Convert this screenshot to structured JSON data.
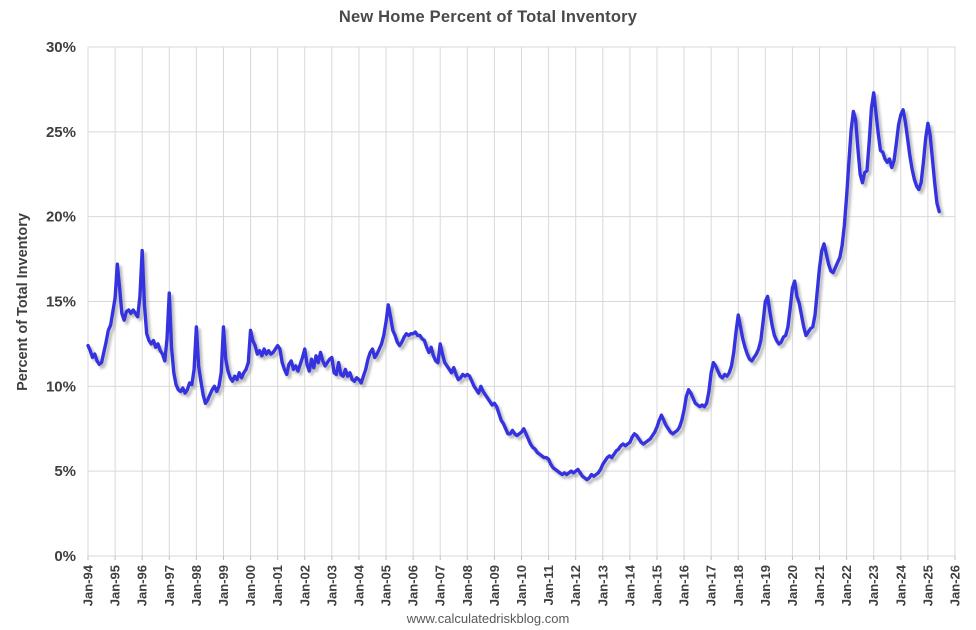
{
  "chart_data": {
    "type": "line",
    "title": "New Home Percent of Total Inventory",
    "ylabel": "Percent of Total Inventory",
    "footer": "www.calculatedriskblog.com",
    "legend": "none",
    "grid": true,
    "ylim": [
      0,
      30
    ],
    "y_ticks": [
      0,
      5,
      10,
      15,
      20,
      25,
      30
    ],
    "y_tick_suffix": "%",
    "x_tick_labels": [
      "Jan-94",
      "Jan-95",
      "Jan-96",
      "Jan-97",
      "Jan-98",
      "Jan-99",
      "Jan-00",
      "Jan-01",
      "Jan-02",
      "Jan-03",
      "Jan-04",
      "Jan-05",
      "Jan-06",
      "Jan-07",
      "Jan-08",
      "Jan-09",
      "Jan-10",
      "Jan-11",
      "Jan-12",
      "Jan-13",
      "Jan-14",
      "Jan-15",
      "Jan-16",
      "Jan-17",
      "Jan-18",
      "Jan-19",
      "Jan-20",
      "Jan-21",
      "Jan-22",
      "Jan-23",
      "Jan-24",
      "Jan-25",
      "Jan-26"
    ],
    "x_start": "Jan-1994",
    "x_end": "Jun-2025",
    "frequency": "monthly",
    "line_color": "#3533e0",
    "series_name": "New home percent of total inventory",
    "series_by_year": {
      "1994": [
        12.4,
        12.1,
        11.7,
        11.9,
        11.5,
        11.3,
        11.4,
        12.0,
        12.6,
        13.3,
        13.6,
        14.4
      ],
      "1995": [
        15.2,
        17.2,
        15.8,
        14.3,
        13.9,
        14.4,
        14.5,
        14.3,
        14.5,
        14.3,
        14.1,
        15.3
      ],
      "1996": [
        18.0,
        14.8,
        13.1,
        12.7,
        12.5,
        12.7,
        12.3,
        12.5,
        12.1,
        11.9,
        11.5,
        12.8
      ],
      "1997": [
        15.5,
        12.3,
        10.8,
        10.1,
        9.8,
        9.7,
        9.9,
        9.6,
        9.8,
        10.2,
        10.1,
        11.0
      ],
      "1998": [
        13.5,
        11.2,
        10.3,
        9.5,
        9.0,
        9.2,
        9.5,
        9.8,
        10.0,
        9.7,
        10.0,
        10.8
      ],
      "1999": [
        13.5,
        11.6,
        10.9,
        10.5,
        10.3,
        10.6,
        10.4,
        10.8,
        10.5,
        10.8,
        11.0,
        11.4
      ],
      "2000": [
        13.3,
        12.7,
        12.4,
        11.9,
        12.1,
        11.8,
        12.2,
        11.9,
        12.1,
        11.9,
        12.0,
        12.2
      ],
      "2001": [
        12.4,
        12.2,
        11.4,
        11.0,
        10.7,
        11.3,
        11.5,
        11.0,
        11.2,
        10.9,
        11.3,
        11.7
      ],
      "2002": [
        12.2,
        11.3,
        10.9,
        11.6,
        11.1,
        11.8,
        11.4,
        12.0,
        11.5,
        11.2,
        11.4,
        11.6
      ],
      "2003": [
        11.7,
        10.8,
        10.7,
        11.4,
        10.7,
        10.6,
        11.0,
        10.6,
        10.8,
        10.4,
        10.3,
        10.5
      ],
      "2004": [
        10.4,
        10.2,
        10.6,
        11.0,
        11.6,
        12.0,
        12.2,
        11.7,
        11.9,
        12.2,
        12.5,
        13.0
      ],
      "2005": [
        13.8,
        14.8,
        14.1,
        13.3,
        13.0,
        12.6,
        12.4,
        12.6,
        12.9,
        13.1,
        13.0,
        13.1
      ],
      "2006": [
        13.1,
        13.2,
        13.0,
        13.0,
        12.8,
        12.7,
        12.3,
        12.0,
        12.3,
        11.8,
        11.5,
        11.4
      ],
      "2007": [
        12.5,
        11.9,
        11.4,
        11.2,
        11.0,
        10.8,
        11.1,
        10.7,
        10.4,
        10.5,
        10.7,
        10.6
      ],
      "2008": [
        10.7,
        10.6,
        10.3,
        10.0,
        9.8,
        9.6,
        10.0,
        9.7,
        9.5,
        9.3,
        9.1,
        8.9
      ],
      "2009": [
        9.0,
        8.8,
        8.4,
        8.0,
        7.8,
        7.5,
        7.2,
        7.2,
        7.4,
        7.2,
        7.1,
        7.2
      ],
      "2010": [
        7.3,
        7.5,
        7.2,
        6.9,
        6.6,
        6.4,
        6.3,
        6.1,
        6.0,
        5.9,
        5.8,
        5.8
      ],
      "2011": [
        5.7,
        5.4,
        5.2,
        5.1,
        5.0,
        4.9,
        4.8,
        4.9,
        4.8,
        4.9,
        5.0,
        4.9
      ],
      "2012": [
        5.0,
        5.1,
        4.9,
        4.7,
        4.6,
        4.5,
        4.6,
        4.8,
        4.7,
        4.8,
        4.9,
        5.1
      ],
      "2013": [
        5.4,
        5.6,
        5.8,
        5.9,
        5.8,
        6.0,
        6.2,
        6.3,
        6.5,
        6.6,
        6.5,
        6.6
      ],
      "2014": [
        6.7,
        7.0,
        7.2,
        7.1,
        6.9,
        6.7,
        6.6,
        6.7,
        6.8,
        6.9,
        7.1,
        7.3
      ],
      "2015": [
        7.6,
        8.0,
        8.3,
        8.0,
        7.7,
        7.5,
        7.3,
        7.2,
        7.3,
        7.4,
        7.6,
        8.0
      ],
      "2016": [
        8.6,
        9.4,
        9.8,
        9.6,
        9.3,
        9.0,
        8.9,
        8.8,
        8.9,
        8.8,
        9.0,
        9.7
      ],
      "2017": [
        10.8,
        11.4,
        11.2,
        10.9,
        10.6,
        10.5,
        10.7,
        10.6,
        10.8,
        11.2,
        12.0,
        13.2
      ],
      "2018": [
        14.2,
        13.5,
        12.8,
        12.3,
        11.9,
        11.6,
        11.5,
        11.7,
        11.9,
        12.2,
        12.7,
        13.8
      ],
      "2019": [
        15.0,
        15.3,
        14.4,
        13.6,
        13.0,
        12.7,
        12.5,
        12.6,
        12.9,
        13.0,
        13.5,
        14.6
      ],
      "2020": [
        15.8,
        16.2,
        15.3,
        14.9,
        14.2,
        13.5,
        13.0,
        13.2,
        13.4,
        13.5,
        14.2,
        15.6
      ],
      "2021": [
        17.0,
        18.0,
        18.4,
        17.8,
        17.2,
        16.8,
        16.7,
        17.0,
        17.3,
        17.6,
        18.3,
        19.5
      ],
      "2022": [
        21.2,
        23.2,
        25.1,
        26.2,
        25.7,
        24.0,
        22.5,
        22.0,
        22.6,
        22.7,
        24.4,
        26.4
      ],
      "2023": [
        27.3,
        26.1,
        24.9,
        23.9,
        23.8,
        23.4,
        23.2,
        23.4,
        22.9,
        23.3,
        24.3,
        25.4
      ],
      "2024": [
        26.0,
        26.3,
        25.6,
        24.6,
        23.6,
        22.8,
        22.2,
        21.8,
        21.6,
        22.0,
        23.2,
        24.6
      ],
      "2025": [
        25.5,
        24.8,
        23.4,
        22.0,
        20.8,
        20.3
      ]
    }
  },
  "style": {
    "line_color": "#3533e0",
    "grid_color": "#d9d9d9",
    "tick_color": "#bfbfbf",
    "text_color": "#3f3f3f",
    "title_color": "#4a4a4a",
    "background": "#ffffff"
  }
}
